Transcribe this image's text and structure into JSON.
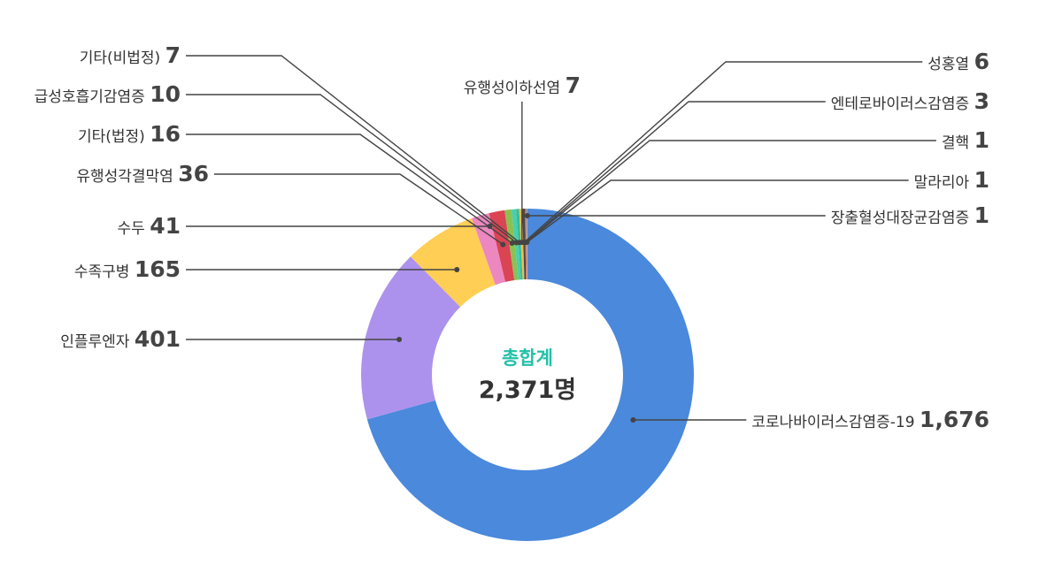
{
  "chart_data": {
    "type": "pie",
    "center": {
      "title": "총합계",
      "total": "2,371명",
      "title_color": "#22c1a8"
    },
    "slices": [
      {
        "label": "코로나바이러스감염증-19",
        "value": 1676,
        "display": "1,676",
        "color": "#4a89dc"
      },
      {
        "label": "인플루엔자",
        "value": 401,
        "display": "401",
        "color": "#ac92ec"
      },
      {
        "label": "수족구병",
        "value": 165,
        "display": "165",
        "color": "#ffce54"
      },
      {
        "label": "수두",
        "value": 41,
        "display": "41",
        "color": "#ec87c0"
      },
      {
        "label": "유행성각결막염",
        "value": 36,
        "display": "36",
        "color": "#da4453"
      },
      {
        "label": "기타(법정)",
        "value": 16,
        "display": "16",
        "color": "#8cc152"
      },
      {
        "label": "급성호흡기감염증",
        "value": 10,
        "display": "10",
        "color": "#48cfad"
      },
      {
        "label": "기타(비법정)",
        "value": 7,
        "display": "7",
        "color": "#37bc9b"
      },
      {
        "label": "유행성이하선염",
        "value": 7,
        "display": "7",
        "color": "#f6bb42"
      },
      {
        "label": "성홍열",
        "value": 6,
        "display": "6",
        "color": "#434a54"
      },
      {
        "label": "엔테로바이러스감염증",
        "value": 3,
        "display": "3",
        "color": "#e9573f"
      },
      {
        "label": "결핵",
        "value": 1,
        "display": "1",
        "color": "#967adc"
      },
      {
        "label": "말라리아",
        "value": 1,
        "display": "1",
        "color": "#3bafda"
      },
      {
        "label": "장출혈성대장균감염증",
        "value": 1,
        "display": "1",
        "color": "#a0d468"
      }
    ]
  }
}
